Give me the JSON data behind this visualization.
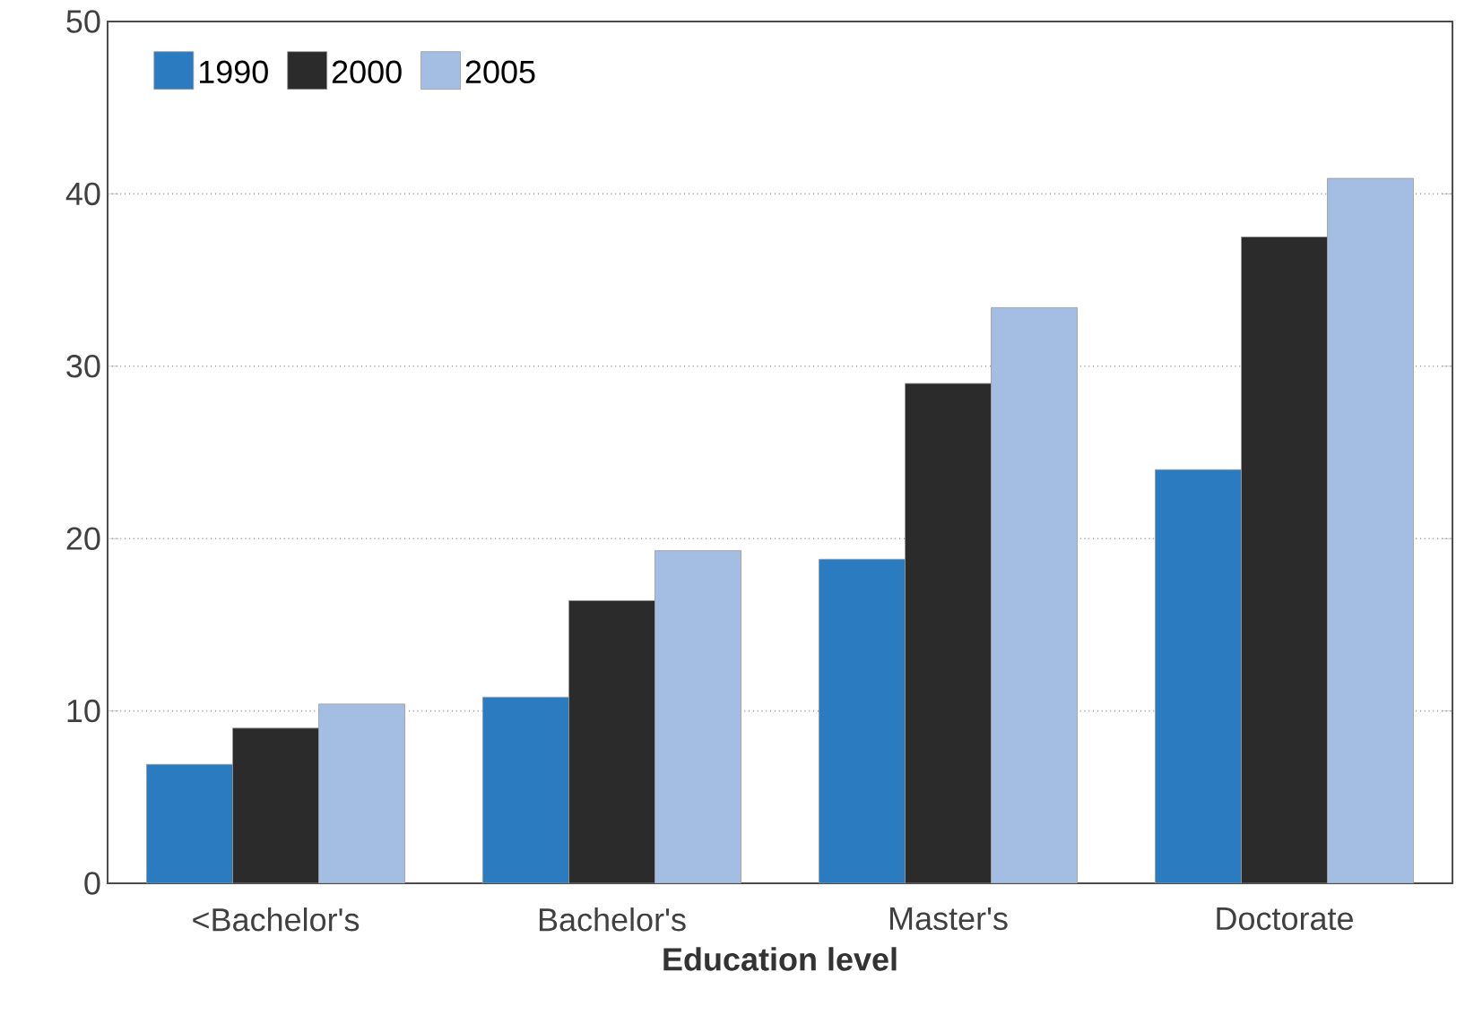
{
  "chart_data": {
    "type": "bar",
    "xlabel": "Education level",
    "categories": [
      "<Bachelor's",
      "Bachelor's",
      "Master's",
      "Doctorate"
    ],
    "series": [
      {
        "name": "1990",
        "color": "#2a7bc0",
        "values": [
          6.9,
          10.8,
          18.8,
          24.0
        ]
      },
      {
        "name": "2000",
        "color": "#2b2b2b",
        "values": [
          9.0,
          16.4,
          29.0,
          37.5
        ]
      },
      {
        "name": "2005",
        "color": "#a3bde3",
        "values": [
          10.4,
          19.3,
          33.4,
          40.9
        ]
      }
    ],
    "ylim": [
      0,
      50
    ],
    "yticks": [
      0,
      10,
      20,
      30,
      40,
      50
    ],
    "grid": "y",
    "legend": "top left"
  }
}
